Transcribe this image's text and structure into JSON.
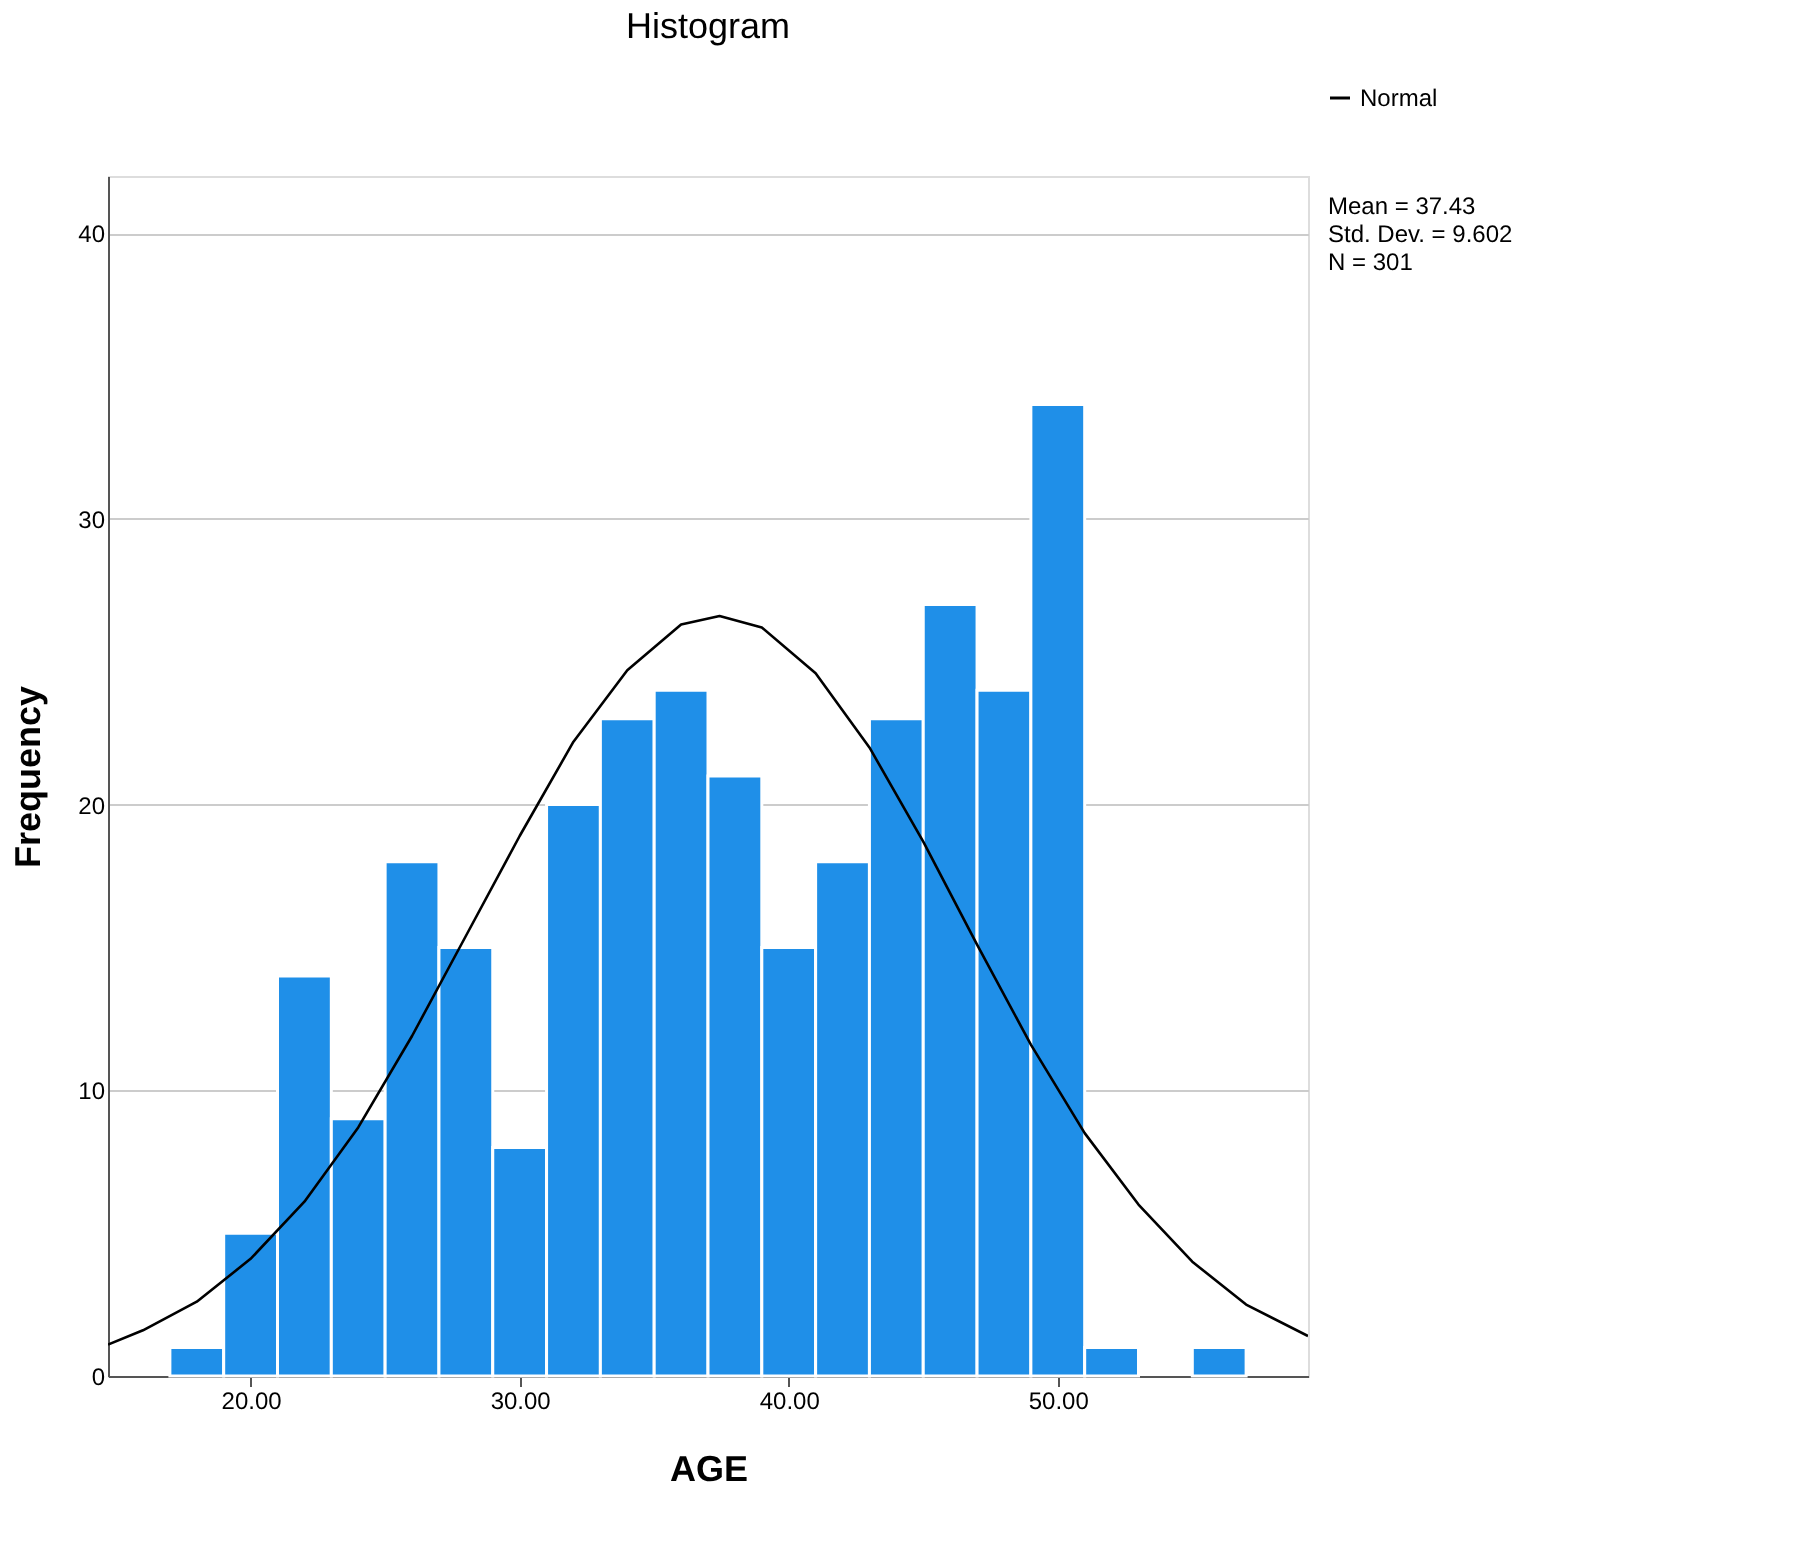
{
  "chart_data": {
    "type": "histogram",
    "title": "Histogram",
    "xlabel": "AGE",
    "ylabel": "Frequency",
    "bins": [
      17,
      19,
      21,
      23,
      25,
      27,
      29,
      31,
      33,
      35,
      37,
      39,
      41,
      43,
      45,
      47,
      49,
      51,
      53,
      55,
      57
    ],
    "values": [
      1,
      5,
      14,
      9,
      18,
      15,
      8,
      20,
      23,
      24,
      21,
      15,
      18,
      23,
      27,
      24,
      34,
      1,
      0,
      1
    ],
    "color": "#1f8fe8",
    "series": [
      {
        "type": "line",
        "name": "Normal",
        "color": "#000000",
        "x": [
          14.7,
          16,
          18,
          20,
          22,
          24,
          26,
          28,
          30,
          32,
          34,
          36,
          37.43,
          39,
          41,
          43,
          45,
          47,
          49,
          51,
          53,
          55,
          57,
          59.3
        ],
        "values": [
          1.1,
          1.6,
          2.6,
          4.1,
          6.1,
          8.7,
          11.9,
          15.4,
          18.9,
          22.2,
          24.7,
          26.3,
          26.6,
          26.2,
          24.6,
          22.0,
          18.7,
          15.1,
          11.6,
          8.5,
          6.0,
          4.0,
          2.5,
          1.4
        ]
      }
    ],
    "xlim": [
      14.7,
      59.3
    ],
    "ylim": [
      0,
      42
    ],
    "xticks": [
      {
        "value": 20,
        "label": "20.00"
      },
      {
        "value": 30,
        "label": "30.00"
      },
      {
        "value": 40,
        "label": "40.00"
      },
      {
        "value": 50,
        "label": "50.00"
      }
    ],
    "yticks": [
      0,
      10,
      20,
      30,
      40
    ],
    "grid": "y",
    "legend": "top right",
    "annotations": [
      "Mean = 37.43",
      "Std. Dev. = 9.602",
      "N = 301"
    ]
  }
}
